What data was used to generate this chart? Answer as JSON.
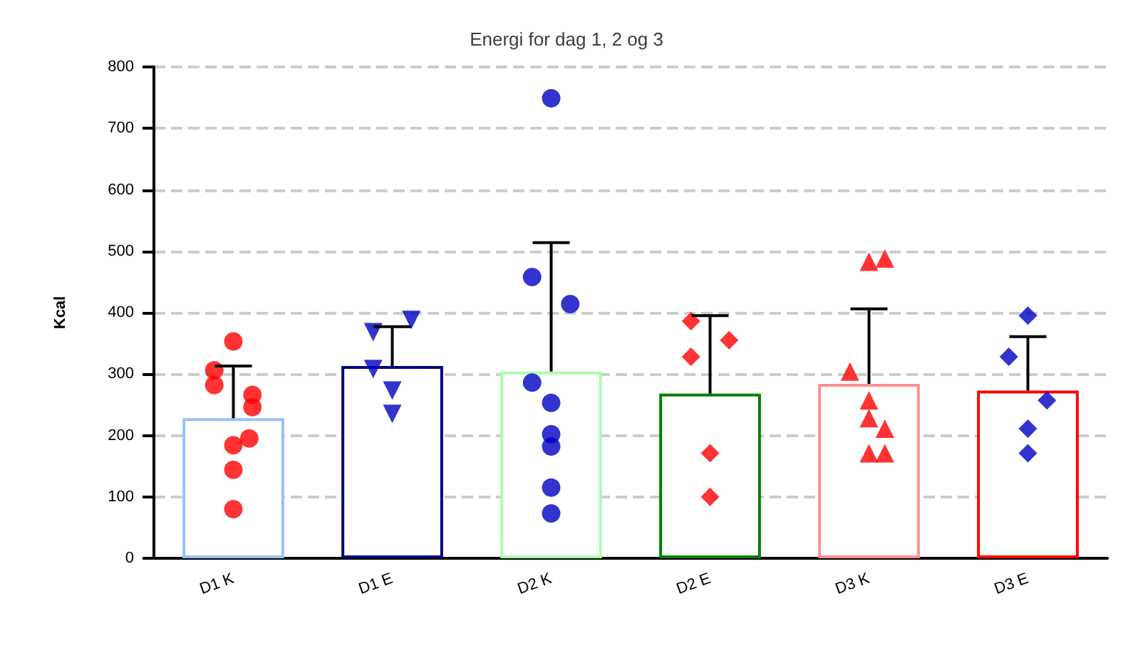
{
  "chart_data": {
    "type": "bar",
    "title": "Energi for dag 1, 2 og 3",
    "ylabel": "Kcal",
    "categories": [
      "D1 K",
      "D1 E",
      "D2 K",
      "D2 E",
      "D3 K",
      "D3 E"
    ],
    "series": [
      {
        "values": [
          228,
          313,
          304,
          268,
          284,
          273
        ],
        "colors": [
          "#99c2f5",
          "#000080",
          "#aaffaa",
          "#008000",
          "#ff9090",
          "#ff0000"
        ],
        "errors": [
          [
            228,
            313
          ],
          [
            313,
            377
          ],
          [
            304,
            514
          ],
          [
            268,
            395
          ],
          [
            284,
            406
          ],
          [
            273,
            361
          ]
        ]
      },
      {
        "type": "scatter",
        "color": "#ff0000",
        "marker": "circle",
        "x": [
          "D1 K",
          "D1 K",
          "D1 K",
          "D1 K",
          "D1 K",
          "D1 K",
          "D1 K",
          "D1 K",
          "D1 K"
        ],
        "values": [
          353,
          306,
          266,
          282,
          246,
          184,
          195,
          144,
          80
        ]
      },
      {
        "type": "scatter",
        "color": "#0000c0",
        "marker": "triangle-down",
        "x": [
          "D1 E",
          "D1 E",
          "D1 E",
          "D1 E",
          "D1 E"
        ],
        "values": [
          368,
          388,
          308,
          273,
          235
        ]
      },
      {
        "type": "scatter",
        "color": "#0000c0",
        "marker": "circle",
        "x": [
          "D2 K",
          "D2 K",
          "D2 K",
          "D2 K",
          "D2 K",
          "D2 K",
          "D2 K",
          "D2 K",
          "D2 K"
        ],
        "values": [
          749,
          458,
          414,
          286,
          253,
          202,
          182,
          115,
          73
        ]
      },
      {
        "type": "scatter",
        "color": "#ff0000",
        "marker": "diamond",
        "x": [
          "D2 E",
          "D2 E",
          "D2 E",
          "D2 E",
          "D2 E"
        ],
        "values": [
          386,
          355,
          328,
          171,
          100
        ]
      },
      {
        "type": "scatter",
        "color": "#ff0000",
        "marker": "triangle",
        "x": [
          "D3 K",
          "D3 K",
          "D3 K",
          "D3 K",
          "D3 K",
          "D3 K",
          "D3 K",
          "D3 K"
        ],
        "values": [
          483,
          488,
          304,
          257,
          228,
          211,
          171,
          171
        ]
      },
      {
        "type": "scatter",
        "color": "#0000c0",
        "marker": "diamond",
        "x": [
          "D3 E",
          "D3 E",
          "D3 E",
          "D3 E",
          "D3 E"
        ],
        "values": [
          395,
          328,
          257,
          211,
          171
        ]
      }
    ],
    "ylim": [
      0,
      800
    ],
    "yticks": [
      0,
      100,
      200,
      300,
      400,
      500,
      600,
      700,
      800
    ],
    "grid": "y"
  }
}
